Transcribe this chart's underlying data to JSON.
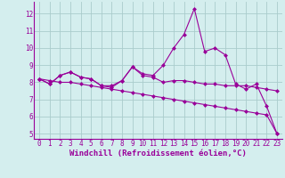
{
  "xlabel": "Windchill (Refroidissement éolien,°C)",
  "x": [
    0,
    1,
    2,
    3,
    4,
    5,
    6,
    7,
    8,
    9,
    10,
    11,
    12,
    13,
    14,
    15,
    16,
    17,
    18,
    19,
    20,
    21,
    22,
    23
  ],
  "line1": [
    8.2,
    7.9,
    8.4,
    8.6,
    8.3,
    8.2,
    7.8,
    7.8,
    8.1,
    8.9,
    8.5,
    8.4,
    9.0,
    10.0,
    10.8,
    12.3,
    9.8,
    10.0,
    9.6,
    7.9,
    7.6,
    7.9,
    6.6,
    5.0
  ],
  "line2": [
    8.2,
    7.9,
    8.4,
    8.6,
    8.3,
    8.2,
    7.8,
    7.7,
    8.1,
    8.9,
    8.4,
    8.3,
    8.0,
    8.1,
    8.1,
    8.0,
    7.9,
    7.9,
    7.8,
    7.8,
    7.8,
    7.7,
    7.6,
    7.5
  ],
  "line3": [
    8.2,
    8.1,
    8.0,
    8.0,
    7.9,
    7.8,
    7.7,
    7.6,
    7.5,
    7.4,
    7.3,
    7.2,
    7.1,
    7.0,
    6.9,
    6.8,
    6.7,
    6.6,
    6.5,
    6.4,
    6.3,
    6.2,
    6.1,
    5.0
  ],
  "line_color": "#990099",
  "bg_color": "#d4eeee",
  "grid_color": "#aacccc",
  "ylim_min": 4.7,
  "ylim_max": 12.7,
  "xlim_min": -0.5,
  "xlim_max": 23.5,
  "yticks": [
    5,
    6,
    7,
    8,
    9,
    10,
    11,
    12
  ],
  "xticks": [
    0,
    1,
    2,
    3,
    4,
    5,
    6,
    7,
    8,
    9,
    10,
    11,
    12,
    13,
    14,
    15,
    16,
    17,
    18,
    19,
    20,
    21,
    22,
    23
  ],
  "tick_fontsize": 5.5,
  "xlabel_fontsize": 6.5,
  "markersize": 2.5
}
